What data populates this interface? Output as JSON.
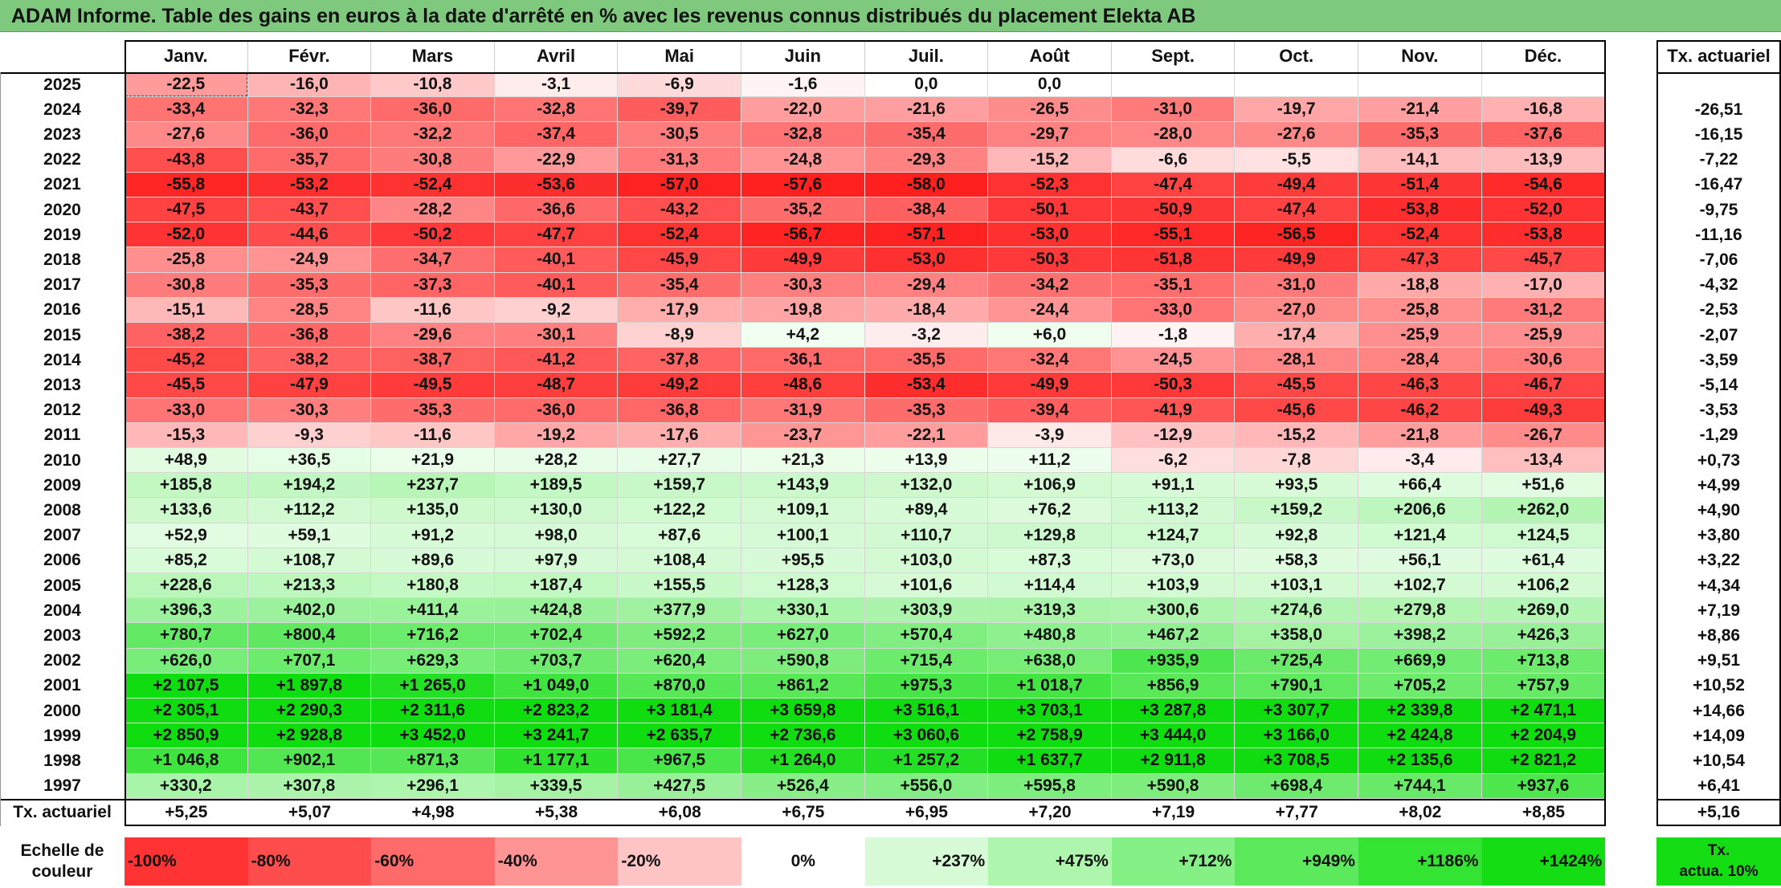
{
  "title": "ADAM Informe. Table des gains en euros à la date d'arrêté en % avec les revenus connus distribués du placement Elekta AB",
  "months": [
    "Janv.",
    "Févr.",
    "Mars",
    "Avril",
    "Mai",
    "Juin",
    "Juil.",
    "Août",
    "Sept.",
    "Oct.",
    "Nov.",
    "Déc."
  ],
  "tx_header": "Tx. actuariel",
  "rows": [
    {
      "year": "2025",
      "values": [
        "-22,5",
        "-16,0",
        "-10,8",
        "-3,1",
        "-6,9",
        "-1,6",
        "0,0",
        "0,0",
        "",
        "",
        "",
        ""
      ],
      "tx": ""
    },
    {
      "year": "2024",
      "values": [
        "-33,4",
        "-32,3",
        "-36,0",
        "-32,8",
        "-39,7",
        "-22,0",
        "-21,6",
        "-26,5",
        "-31,0",
        "-19,7",
        "-21,4",
        "-16,8"
      ],
      "tx": "-26,51"
    },
    {
      "year": "2023",
      "values": [
        "-27,6",
        "-36,0",
        "-32,2",
        "-37,4",
        "-30,5",
        "-32,8",
        "-35,4",
        "-29,7",
        "-28,0",
        "-27,6",
        "-35,3",
        "-37,6"
      ],
      "tx": "-16,15"
    },
    {
      "year": "2022",
      "values": [
        "-43,8",
        "-35,7",
        "-30,8",
        "-22,9",
        "-31,3",
        "-24,8",
        "-29,3",
        "-15,2",
        "-6,6",
        "-5,5",
        "-14,1",
        "-13,9"
      ],
      "tx": "-7,22"
    },
    {
      "year": "2021",
      "values": [
        "-55,8",
        "-53,2",
        "-52,4",
        "-53,6",
        "-57,0",
        "-57,6",
        "-58,0",
        "-52,3",
        "-47,4",
        "-49,4",
        "-51,4",
        "-54,6"
      ],
      "tx": "-16,47"
    },
    {
      "year": "2020",
      "values": [
        "-47,5",
        "-43,7",
        "-28,2",
        "-36,6",
        "-43,2",
        "-35,2",
        "-38,4",
        "-50,1",
        "-50,9",
        "-47,4",
        "-53,8",
        "-52,0"
      ],
      "tx": "-9,75"
    },
    {
      "year": "2019",
      "values": [
        "-52,0",
        "-44,6",
        "-50,2",
        "-47,7",
        "-52,4",
        "-56,7",
        "-57,1",
        "-53,0",
        "-55,1",
        "-56,5",
        "-52,4",
        "-53,8"
      ],
      "tx": "-11,16"
    },
    {
      "year": "2018",
      "values": [
        "-25,8",
        "-24,9",
        "-34,7",
        "-40,1",
        "-45,9",
        "-49,9",
        "-53,0",
        "-50,3",
        "-51,8",
        "-49,9",
        "-47,3",
        "-45,7"
      ],
      "tx": "-7,06"
    },
    {
      "year": "2017",
      "values": [
        "-30,8",
        "-35,3",
        "-37,3",
        "-40,1",
        "-35,4",
        "-30,3",
        "-29,4",
        "-34,2",
        "-35,1",
        "-31,0",
        "-18,8",
        "-17,0"
      ],
      "tx": "-4,32"
    },
    {
      "year": "2016",
      "values": [
        "-15,1",
        "-28,5",
        "-11,6",
        "-9,2",
        "-17,9",
        "-19,8",
        "-18,4",
        "-24,4",
        "-33,0",
        "-27,0",
        "-25,8",
        "-31,2"
      ],
      "tx": "-2,53"
    },
    {
      "year": "2015",
      "values": [
        "-38,2",
        "-36,8",
        "-29,6",
        "-30,1",
        "-8,9",
        "+4,2",
        "-3,2",
        "+6,0",
        "-1,8",
        "-17,4",
        "-25,9",
        "-25,9"
      ],
      "tx": "-2,07"
    },
    {
      "year": "2014",
      "values": [
        "-45,2",
        "-38,2",
        "-38,7",
        "-41,2",
        "-37,8",
        "-36,1",
        "-35,5",
        "-32,4",
        "-24,5",
        "-28,1",
        "-28,4",
        "-30,6"
      ],
      "tx": "-3,59"
    },
    {
      "year": "2013",
      "values": [
        "-45,5",
        "-47,9",
        "-49,5",
        "-48,7",
        "-49,2",
        "-48,6",
        "-53,4",
        "-49,9",
        "-50,3",
        "-45,5",
        "-46,3",
        "-46,7"
      ],
      "tx": "-5,14"
    },
    {
      "year": "2012",
      "values": [
        "-33,0",
        "-30,3",
        "-35,3",
        "-36,0",
        "-36,8",
        "-31,9",
        "-35,3",
        "-39,4",
        "-41,9",
        "-45,6",
        "-46,2",
        "-49,3"
      ],
      "tx": "-3,53"
    },
    {
      "year": "2011",
      "values": [
        "-15,3",
        "-9,3",
        "-11,6",
        "-19,2",
        "-17,6",
        "-23,7",
        "-22,1",
        "-3,9",
        "-12,9",
        "-15,2",
        "-21,8",
        "-26,7"
      ],
      "tx": "-1,29"
    },
    {
      "year": "2010",
      "values": [
        "+48,9",
        "+36,5",
        "+21,9",
        "+28,2",
        "+27,7",
        "+21,3",
        "+13,9",
        "+11,2",
        "-6,2",
        "-7,8",
        "-3,4",
        "-13,4"
      ],
      "tx": "+0,73"
    },
    {
      "year": "2009",
      "values": [
        "+185,8",
        "+194,2",
        "+237,7",
        "+189,5",
        "+159,7",
        "+143,9",
        "+132,0",
        "+106,9",
        "+91,1",
        "+93,5",
        "+66,4",
        "+51,6"
      ],
      "tx": "+4,99"
    },
    {
      "year": "2008",
      "values": [
        "+133,6",
        "+112,2",
        "+135,0",
        "+130,0",
        "+122,2",
        "+109,1",
        "+89,4",
        "+76,2",
        "+113,2",
        "+159,2",
        "+206,6",
        "+262,0"
      ],
      "tx": "+4,90"
    },
    {
      "year": "2007",
      "values": [
        "+52,9",
        "+59,1",
        "+91,2",
        "+98,0",
        "+87,6",
        "+100,1",
        "+110,7",
        "+129,8",
        "+124,7",
        "+92,8",
        "+121,4",
        "+124,5"
      ],
      "tx": "+3,80"
    },
    {
      "year": "2006",
      "values": [
        "+85,2",
        "+108,7",
        "+89,6",
        "+97,9",
        "+108,4",
        "+95,5",
        "+103,0",
        "+87,3",
        "+73,0",
        "+58,3",
        "+56,1",
        "+61,4"
      ],
      "tx": "+3,22"
    },
    {
      "year": "2005",
      "values": [
        "+228,6",
        "+213,3",
        "+180,8",
        "+187,4",
        "+155,5",
        "+128,3",
        "+101,6",
        "+114,4",
        "+103,9",
        "+103,1",
        "+102,7",
        "+106,2"
      ],
      "tx": "+4,34"
    },
    {
      "year": "2004",
      "values": [
        "+396,3",
        "+402,0",
        "+411,4",
        "+424,8",
        "+377,9",
        "+330,1",
        "+303,9",
        "+319,3",
        "+300,6",
        "+274,6",
        "+279,8",
        "+269,0"
      ],
      "tx": "+7,19"
    },
    {
      "year": "2003",
      "values": [
        "+780,7",
        "+800,4",
        "+716,2",
        "+702,4",
        "+592,2",
        "+627,0",
        "+570,4",
        "+480,8",
        "+467,2",
        "+358,0",
        "+398,2",
        "+426,3"
      ],
      "tx": "+8,86"
    },
    {
      "year": "2002",
      "values": [
        "+626,0",
        "+707,1",
        "+629,3",
        "+703,7",
        "+620,4",
        "+590,8",
        "+715,4",
        "+638,0",
        "+935,9",
        "+725,4",
        "+669,9",
        "+713,8"
      ],
      "tx": "+9,51"
    },
    {
      "year": "2001",
      "values": [
        "+2 107,5",
        "+1 897,8",
        "+1 265,0",
        "+1 049,0",
        "+870,0",
        "+861,2",
        "+975,3",
        "+1 018,7",
        "+856,9",
        "+790,1",
        "+705,2",
        "+757,9"
      ],
      "tx": "+10,52"
    },
    {
      "year": "2000",
      "values": [
        "+2 305,1",
        "+2 290,3",
        "+2 311,6",
        "+2 823,2",
        "+3 181,4",
        "+3 659,8",
        "+3 516,1",
        "+3 703,1",
        "+3 287,8",
        "+3 307,7",
        "+2 339,8",
        "+2 471,1"
      ],
      "tx": "+14,66"
    },
    {
      "year": "1999",
      "values": [
        "+2 850,9",
        "+2 928,8",
        "+3 452,0",
        "+3 241,7",
        "+2 635,7",
        "+2 736,6",
        "+3 060,6",
        "+2 758,9",
        "+3 444,0",
        "+3 166,0",
        "+2 424,8",
        "+2 204,9"
      ],
      "tx": "+14,09"
    },
    {
      "year": "1998",
      "values": [
        "+1 046,8",
        "+902,1",
        "+871,3",
        "+1 177,1",
        "+967,5",
        "+1 264,0",
        "+1 257,2",
        "+1 637,7",
        "+2 911,8",
        "+3 708,5",
        "+2 135,6",
        "+2 821,2"
      ],
      "tx": "+10,54"
    },
    {
      "year": "1997",
      "values": [
        "+330,2",
        "+307,8",
        "+296,1",
        "+339,5",
        "+427,5",
        "+526,4",
        "+556,0",
        "+595,8",
        "+590,8",
        "+698,4",
        "+744,1",
        "+937,6"
      ],
      "tx": "+6,41"
    }
  ],
  "footer": {
    "label": "Tx. actuariel",
    "values": [
      "+5,25",
      "+5,07",
      "+4,98",
      "+5,38",
      "+6,08",
      "+6,75",
      "+6,95",
      "+7,20",
      "+7,19",
      "+7,77",
      "+8,02",
      "+8,85"
    ],
    "tx": "+5,16"
  },
  "legend": {
    "label_line1": "Echelle de",
    "label_line2": "couleur",
    "items": [
      {
        "text": "-100%",
        "color": "#ff3333",
        "align": "left"
      },
      {
        "text": "-80%",
        "color": "#ff4d4d",
        "align": "left"
      },
      {
        "text": "-60%",
        "color": "#ff6b6b",
        "align": "left"
      },
      {
        "text": "-40%",
        "color": "#ff9494",
        "align": "left"
      },
      {
        "text": "-20%",
        "color": "#ffc4c4",
        "align": "left"
      },
      {
        "text": "0%",
        "color": "#ffffff",
        "align": "center"
      },
      {
        "text": "+237%",
        "color": "#d6fbd6",
        "align": "right"
      },
      {
        "text": "+475%",
        "color": "#aef5ae",
        "align": "right"
      },
      {
        "text": "+712%",
        "color": "#85f085",
        "align": "right"
      },
      {
        "text": "+949%",
        "color": "#5cea5c",
        "align": "right"
      },
      {
        "text": "+1186%",
        "color": "#33e433",
        "align": "right"
      },
      {
        "text": "+1424%",
        "color": "#14dd14",
        "align": "right"
      }
    ],
    "tx_line1": "Tx.",
    "tx_line2": "actua. 10%",
    "tx_color": "#14dd14"
  },
  "colors": {
    "title_bg": "#7fc97f",
    "neg_max": "#ff1f1f",
    "pos_max": "#10dd10"
  }
}
